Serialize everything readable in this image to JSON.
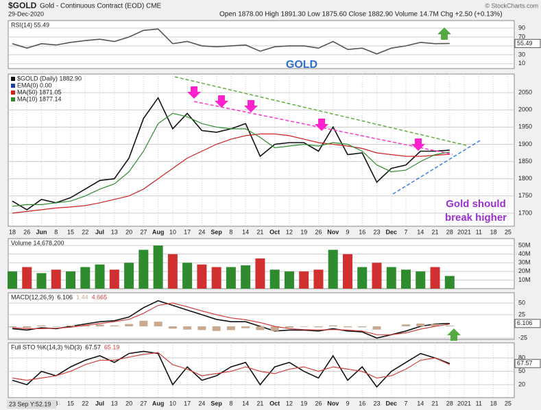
{
  "header": {
    "symbol": "$GOLD",
    "name": "Gold - Continuous Contract (EOD)",
    "exchange": "CME",
    "date": "29-Dec-2020",
    "quote": "Open 1878.00 High 1891.30 Low 1875.60 Close 1882.90 Volume 14.7M Chg +2.50 (+0.13%)",
    "source": "© StockCharts.com"
  },
  "annotations": {
    "label": "GOLD",
    "note": [
      "Gold should",
      "break higher"
    ]
  },
  "footer": "23 Sep Y:52.19",
  "chart_data": [
    {
      "type": "line",
      "title": "RSI(14) 55.49",
      "ylim": [
        -1,
        107
      ],
      "yticks": [
        10,
        30,
        50,
        70,
        90
      ],
      "grid": true,
      "series": [
        {
          "color": "#555555",
          "values": [
            55,
            45,
            55,
            52,
            58,
            62,
            65,
            60,
            70,
            85,
            88,
            55,
            60,
            50,
            48,
            50,
            52,
            38,
            48,
            50,
            50,
            45,
            60,
            42,
            45,
            32,
            45,
            50,
            58,
            55,
            55.49,
            null,
            null,
            null,
            null
          ]
        }
      ]
    },
    {
      "type": "line",
      "ylim": [
        1662,
        2104
      ],
      "yticks": [
        1700,
        1750,
        1800,
        1850,
        1900,
        1950,
        2000,
        2050
      ],
      "grid": true,
      "categories": [
        "18",
        "26",
        "Jun",
        "8",
        "15",
        "22",
        "Jul",
        "13",
        "20",
        "27",
        "Aug",
        "10",
        "17",
        "24",
        "Sep",
        "8",
        "14",
        "21",
        "Oct",
        "12",
        "19",
        "26",
        "Nov",
        "9",
        "16",
        "23",
        "Dec",
        "7",
        "14",
        "21",
        "28",
        "2021",
        "11",
        "18",
        "25"
      ],
      "series": [
        {
          "name": "$GOLD (Daily) 1882.90",
          "color": "#111111",
          "values": [
            1735,
            1710,
            1740,
            1730,
            1745,
            1770,
            1795,
            1800,
            1860,
            1975,
            2035,
            1945,
            1990,
            1940,
            1935,
            1945,
            1960,
            1865,
            1900,
            1905,
            1905,
            1880,
            1950,
            1870,
            1875,
            1790,
            1830,
            1840,
            1880,
            1880,
            1882.9,
            null,
            null,
            null,
            null
          ]
        },
        {
          "name": "EMA(0) 0.00",
          "color": "#1f3fa0",
          "values": [
            null,
            null,
            null,
            null,
            null,
            null,
            null,
            null,
            null,
            null,
            null,
            null,
            null,
            null,
            null,
            null,
            null,
            null,
            null,
            null,
            null,
            null,
            null,
            null,
            null,
            null,
            null,
            null,
            null,
            null,
            null,
            null,
            null,
            null,
            null
          ]
        },
        {
          "name": "MA(50) 1871.05",
          "color": "#d02020",
          "values": [
            1700,
            1705,
            1710,
            1715,
            1718,
            1722,
            1730,
            1740,
            1750,
            1770,
            1800,
            1830,
            1860,
            1880,
            1900,
            1915,
            1925,
            1930,
            1930,
            1925,
            1915,
            1905,
            1900,
            1895,
            1888,
            1875,
            1870,
            1865,
            1865,
            1868,
            1871.05,
            null,
            null,
            null,
            null
          ]
        },
        {
          "name": "MA(10) 1877.14",
          "color": "#2e8b2e",
          "values": [
            1720,
            1725,
            1725,
            1730,
            1735,
            1750,
            1770,
            1785,
            1820,
            1880,
            1960,
            1990,
            1980,
            1960,
            1950,
            1945,
            1945,
            1920,
            1890,
            1895,
            1900,
            1895,
            1905,
            1900,
            1880,
            1840,
            1820,
            1825,
            1850,
            1870,
            1877.14,
            null,
            null,
            null,
            null
          ]
        }
      ]
    },
    {
      "type": "bar",
      "title": "Volume 14,678,200",
      "ylim": [
        0,
        58000000
      ],
      "yticks": [
        {
          "value": 10000000,
          "label": "10M"
        },
        {
          "value": 20000000,
          "label": "20M"
        },
        {
          "value": 30000000,
          "label": "30M"
        },
        {
          "value": 40000000,
          "label": "40M"
        },
        {
          "value": 50000000,
          "label": "50M"
        }
      ],
      "grid": true,
      "values": [
        20000000,
        25000000,
        18000000,
        22000000,
        20000000,
        25000000,
        28000000,
        22000000,
        30000000,
        45000000,
        50000000,
        40000000,
        30000000,
        28000000,
        25000000,
        25000000,
        27000000,
        35000000,
        22000000,
        20000000,
        20000000,
        22000000,
        45000000,
        40000000,
        25000000,
        30000000,
        25000000,
        22000000,
        20000000,
        25000000,
        14678200,
        null,
        null,
        null,
        null
      ],
      "colors": [
        "#2e8b2e",
        "#d03030",
        "#2e8b2e",
        "#d03030",
        "#2e8b2e",
        "#2e8b2e",
        "#2e8b2e",
        "#d03030",
        "#2e8b2e",
        "#2e8b2e",
        "#2e8b2e",
        "#d03030",
        "#2e8b2e",
        "#d03030",
        "#d03030",
        "#2e8b2e",
        "#2e8b2e",
        "#d03030",
        "#2e8b2e",
        "#2e8b2e",
        "#d03030",
        "#d03030",
        "#2e8b2e",
        "#d03030",
        "#2e8b2e",
        "#d03030",
        "#2e8b2e",
        "#2e8b2e",
        "#2e8b2e",
        "#d03030",
        "#2e8b2e",
        "#2e8b2e",
        "#2e8b2e",
        "#2e8b2e",
        "#2e8b2e"
      ]
    },
    {
      "type": "line",
      "title": "MACD(12,26,9)",
      "ylim": [
        -28,
        72
      ],
      "yticks": [
        -25,
        25,
        50
      ],
      "grid": true,
      "series": [
        {
          "color": "#111111",
          "values": [
            -5,
            -8,
            -3,
            -5,
            0,
            5,
            10,
            12,
            20,
            40,
            55,
            45,
            35,
            25,
            15,
            10,
            10,
            0,
            -10,
            -8,
            -8,
            -10,
            -5,
            -10,
            -12,
            -25,
            -18,
            -10,
            0,
            5,
            6.106,
            null,
            null,
            null,
            null
          ]
        },
        {
          "color": "#c9a990",
          "kind": "histogram",
          "values": [
            -2,
            -3,
            2,
            -1,
            2,
            3,
            4,
            2,
            5,
            12,
            10,
            -5,
            -7,
            -8,
            -10,
            -8,
            -4,
            -8,
            -10,
            -3,
            -1,
            -2,
            2,
            -2,
            -2,
            -7,
            0,
            4,
            6,
            5,
            1.44,
            null,
            null,
            null,
            null
          ]
        },
        {
          "color": "#d04040",
          "values": [
            -3,
            -5,
            -5,
            -4,
            -2,
            2,
            6,
            10,
            15,
            28,
            45,
            50,
            42,
            33,
            25,
            18,
            14,
            8,
            0,
            -5,
            -7,
            -8,
            -7,
            -8,
            -10,
            -18,
            -18,
            -14,
            -6,
            0,
            4.665,
            null,
            null,
            null,
            null
          ]
        }
      ]
    },
    {
      "type": "line",
      "title": "Full STO %K(14,3) %D(3)",
      "ylim": [
        -9,
        114
      ],
      "yticks": [
        20,
        50,
        80
      ],
      "grid": true,
      "categories": [
        "18",
        "26",
        "Jun",
        "8",
        "15",
        "22",
        "Jul",
        "13",
        "20",
        "27",
        "Aug",
        "10",
        "17",
        "24",
        "Sep",
        "8",
        "14",
        "21",
        "Oct",
        "12",
        "19",
        "26",
        "Nov",
        "9",
        "16",
        "23",
        "Dec",
        "7",
        "14",
        "21",
        "28",
        "2021",
        "11",
        "18",
        "25"
      ],
      "series": [
        {
          "color": "#111111",
          "values": [
            30,
            20,
            50,
            40,
            60,
            75,
            85,
            70,
            90,
            95,
            90,
            20,
            60,
            30,
            40,
            60,
            70,
            20,
            60,
            70,
            50,
            35,
            85,
            30,
            60,
            15,
            50,
            70,
            90,
            80,
            67.57,
            null,
            null,
            null,
            null
          ]
        },
        {
          "color": "#d04040",
          "values": [
            35,
            30,
            35,
            40,
            50,
            65,
            75,
            75,
            82,
            88,
            92,
            65,
            55,
            40,
            45,
            50,
            60,
            50,
            45,
            55,
            60,
            50,
            60,
            55,
            50,
            35,
            40,
            55,
            75,
            80,
            65.19,
            null,
            null,
            null,
            null
          ]
        }
      ]
    }
  ]
}
